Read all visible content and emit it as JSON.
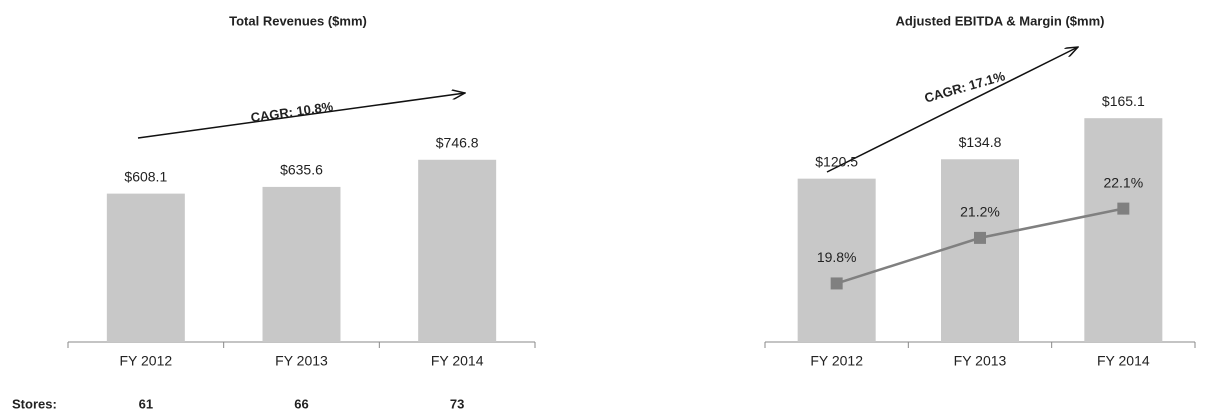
{
  "chart_data": [
    {
      "type": "bar",
      "title": "Total Revenues ($mm)",
      "categories": [
        "FY 2012",
        "FY 2013",
        "FY 2014"
      ],
      "values": [
        608.1,
        635.6,
        746.8
      ],
      "value_labels": [
        "$608.1",
        "$635.6",
        "$746.8"
      ],
      "color": "#c8c8c8",
      "ylim": [
        0,
        1000
      ],
      "annotation": "CAGR: 10.8%",
      "stores": {
        "label": "Stores:",
        "values": [
          61,
          66,
          73
        ]
      }
    },
    {
      "type": "bar",
      "title": "Adjusted EBITDA & Margin ($mm)",
      "categories": [
        "FY 2012",
        "FY 2013",
        "FY 2014"
      ],
      "series": [
        {
          "name": "Adjusted EBITDA",
          "type": "bar",
          "color": "#c8c8c8",
          "values": [
            120.5,
            134.8,
            165.1
          ],
          "value_labels": [
            "$120.5",
            "$134.8",
            "$165.1"
          ]
        },
        {
          "name": "Margin",
          "type": "line",
          "axis": "y2",
          "color": "#808080",
          "values": [
            19.8,
            21.2,
            22.1
          ],
          "value_labels": [
            "19.8%",
            "21.2%",
            "22.1%"
          ]
        }
      ],
      "ylim": [
        0,
        180
      ],
      "y2lim": [
        18,
        25.5
      ],
      "annotation": "CAGR: 17.1%"
    }
  ]
}
